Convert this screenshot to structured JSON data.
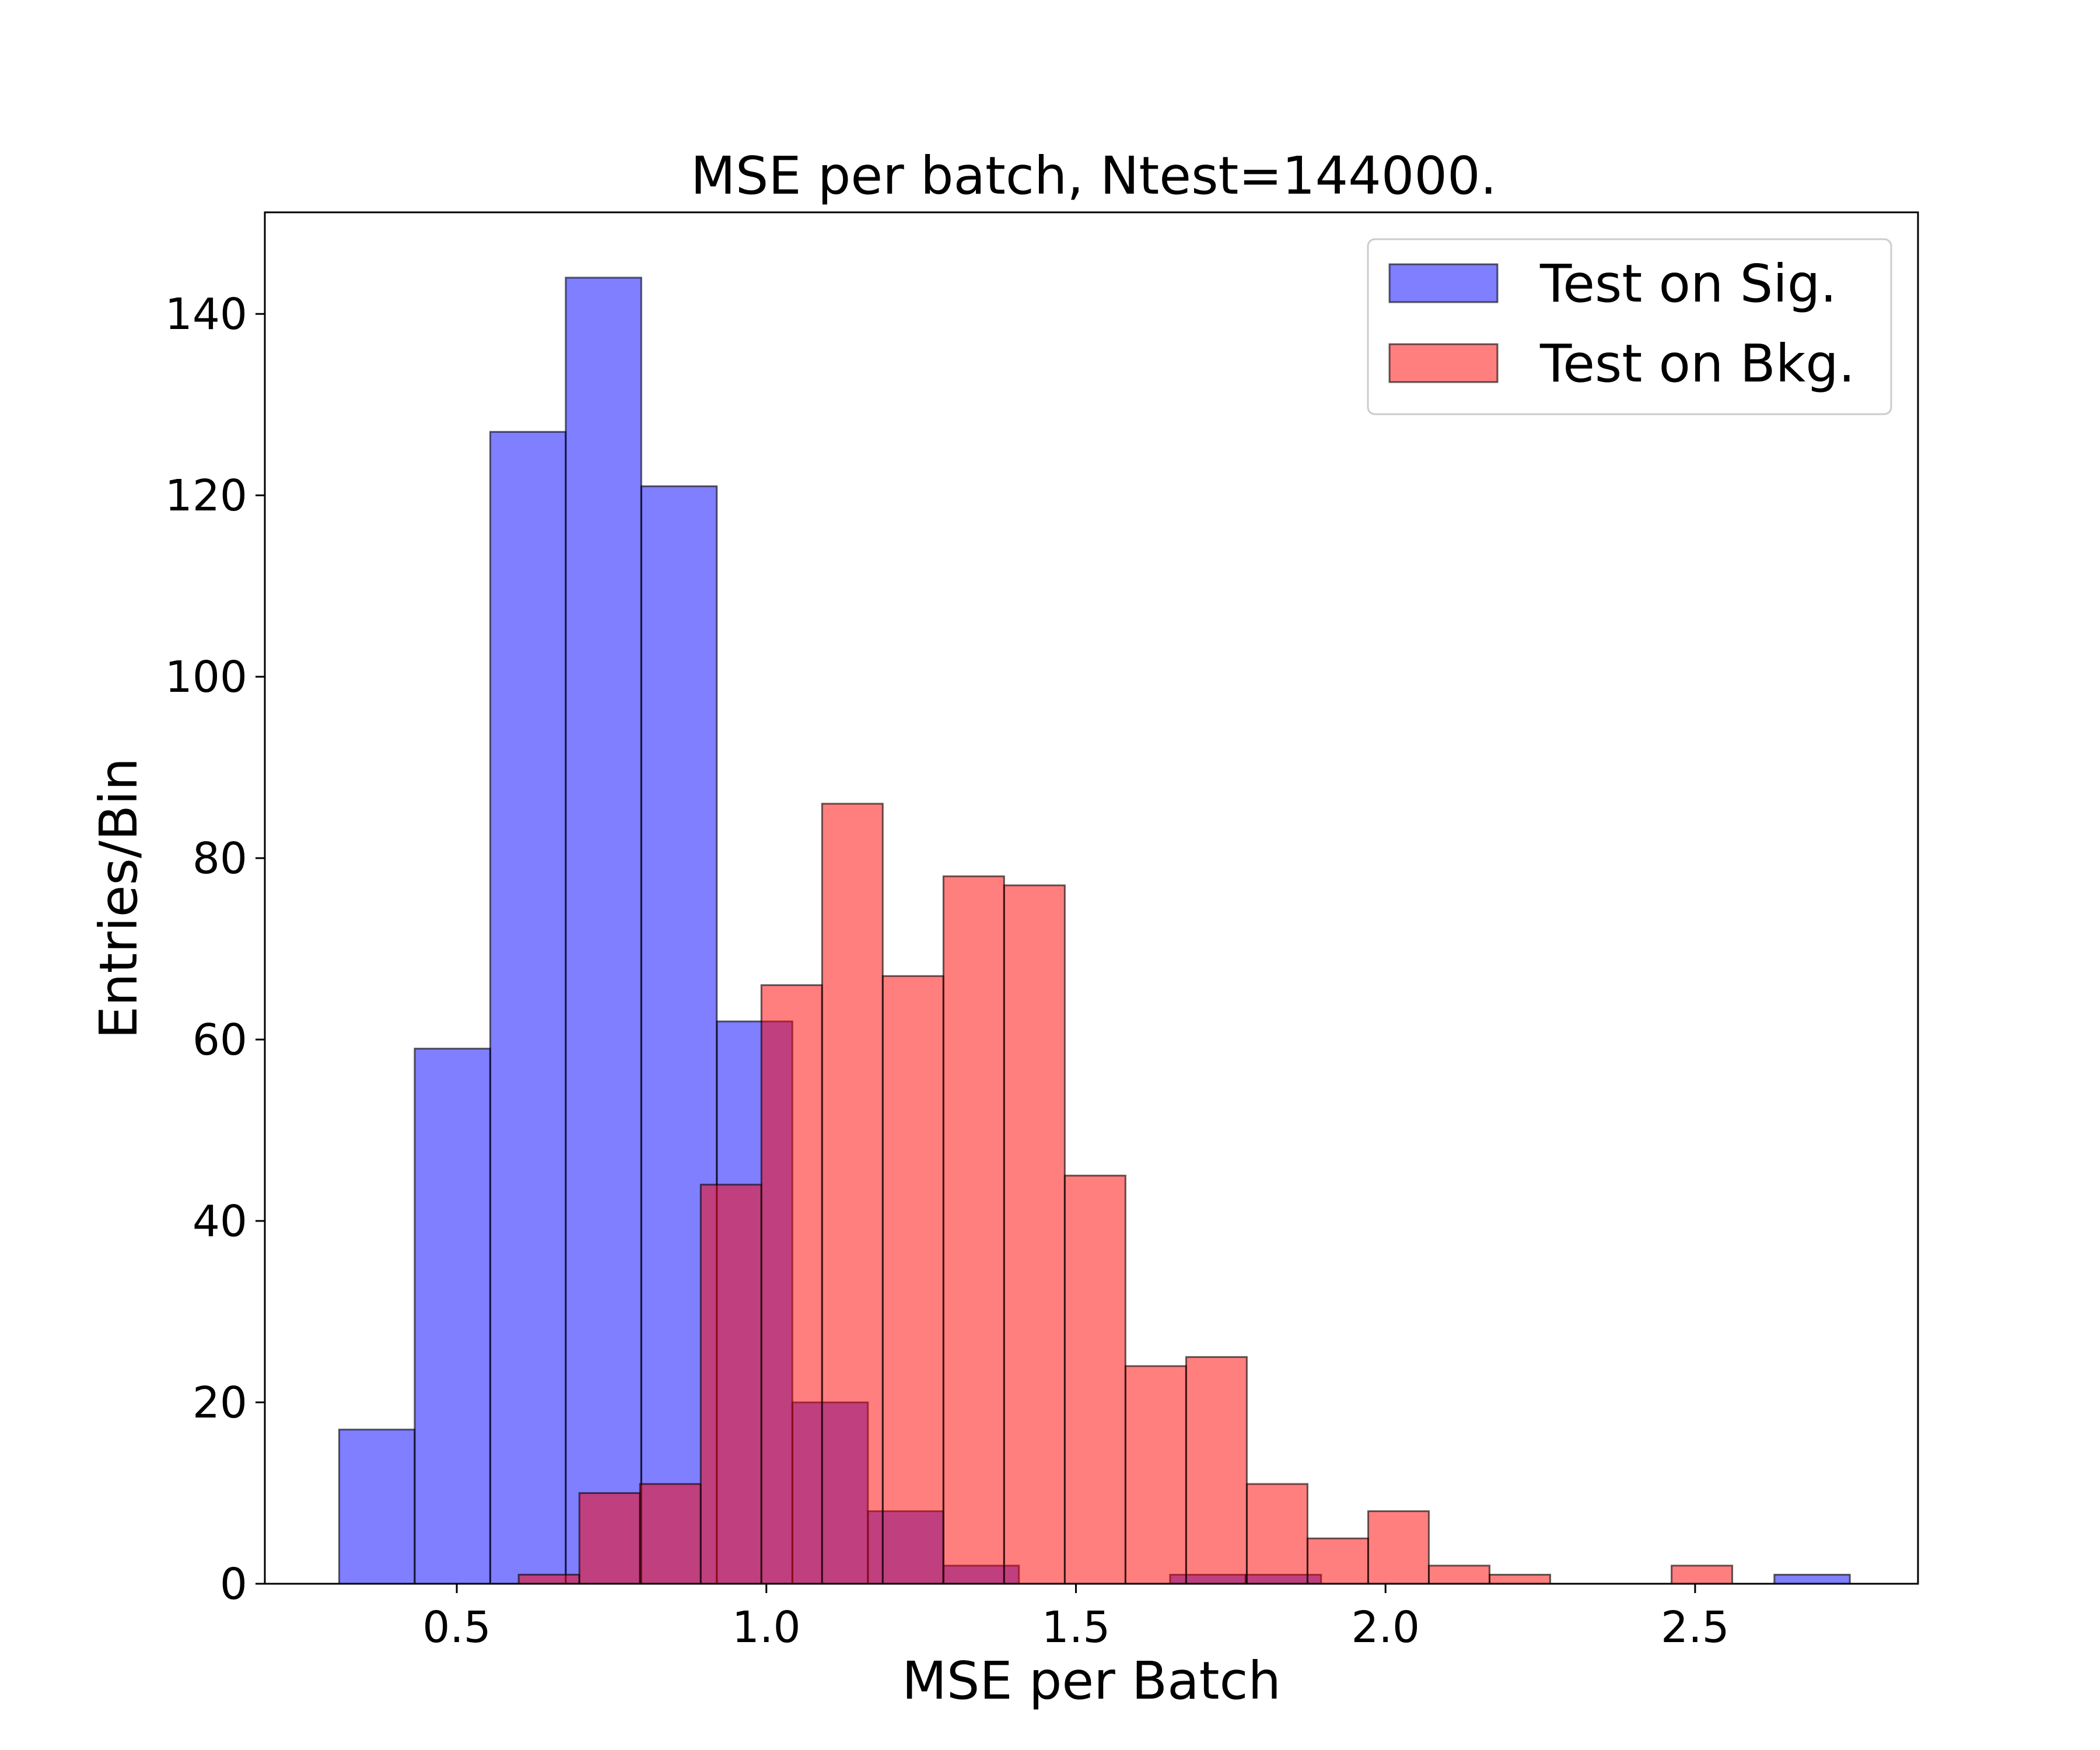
{
  "chart_data": {
    "type": "bar",
    "title": "MSE per batch, Ntest=144000.",
    "xlabel": "MSE per Batch",
    "ylabel": "Entries/Bin",
    "xlim": [
      0.19,
      2.86
    ],
    "ylim": [
      0,
      151.2
    ],
    "xticks": [
      0.5,
      1.0,
      1.5,
      2.0,
      2.5
    ],
    "xtick_labels": [
      "0.5",
      "1.0",
      "1.5",
      "2.0",
      "2.5"
    ],
    "yticks": [
      0,
      20,
      40,
      60,
      80,
      100,
      120,
      140
    ],
    "ytick_labels": [
      "0",
      "20",
      "40",
      "60",
      "80",
      "100",
      "120",
      "140"
    ],
    "grid": false,
    "legend_position": "top-right",
    "series": [
      {
        "name": "Test on Sig.",
        "color": "#0000ff",
        "alpha": 0.5,
        "bin_edges": [
          0.31,
          0.432,
          0.554,
          0.676,
          0.798,
          0.92,
          1.042,
          1.164,
          1.286,
          1.408,
          1.53,
          1.652,
          1.774,
          1.896,
          2.018,
          2.14,
          2.262,
          2.384,
          2.506,
          2.628,
          2.75
        ],
        "counts": [
          17,
          59,
          127,
          144,
          121,
          62,
          20,
          8,
          2,
          0,
          0,
          1,
          1,
          0,
          0,
          0,
          0,
          0,
          0,
          1
        ]
      },
      {
        "name": "Test on Bkg.",
        "color": "#ff0000",
        "alpha": 0.5,
        "bin_edges": [
          0.6,
          0.698,
          0.796,
          0.894,
          0.992,
          1.09,
          1.188,
          1.286,
          1.384,
          1.482,
          1.58,
          1.678,
          1.776,
          1.874,
          1.972,
          2.07,
          2.168,
          2.266,
          2.364,
          2.462,
          2.56
        ],
        "counts": [
          1,
          10,
          11,
          44,
          66,
          86,
          67,
          78,
          77,
          45,
          24,
          25,
          11,
          5,
          8,
          2,
          1,
          0,
          0,
          2
        ]
      }
    ]
  }
}
